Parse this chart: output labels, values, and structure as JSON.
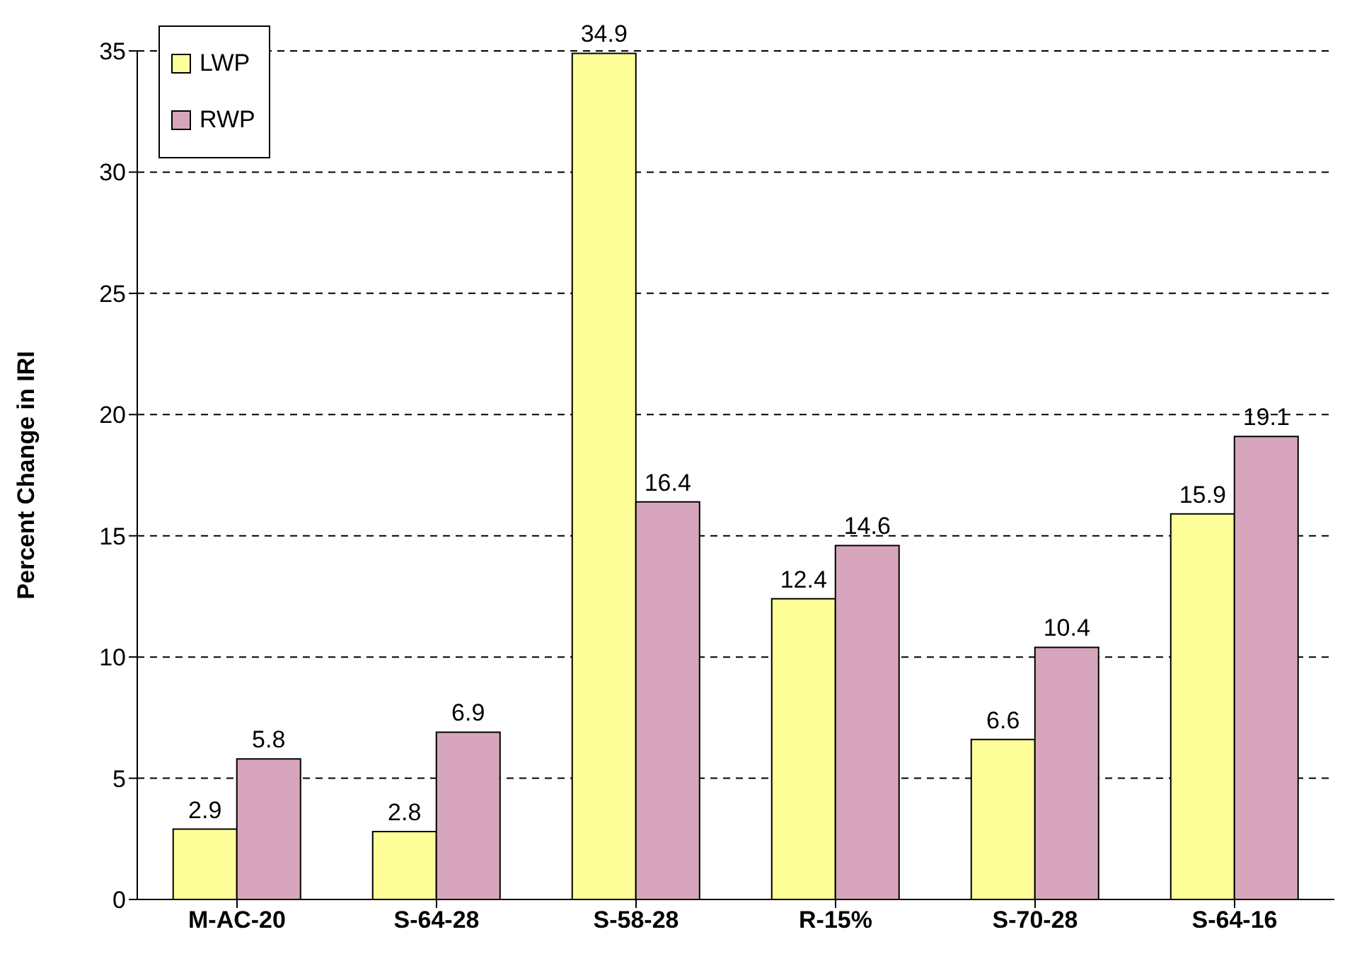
{
  "chart_data": {
    "type": "bar",
    "ylabel": "Percent Change in IRI",
    "categories": [
      "M-AC-20",
      "S-64-28",
      "S-58-28",
      "R-15%",
      "S-70-28",
      "S-64-16"
    ],
    "series": [
      {
        "name": "LWP",
        "color": "#ffff99",
        "values": [
          2.9,
          2.8,
          34.9,
          12.4,
          6.6,
          15.9
        ]
      },
      {
        "name": "RWP",
        "color": "#d8a6bc",
        "values": [
          5.8,
          6.9,
          16.4,
          14.6,
          10.4,
          19.1
        ]
      }
    ],
    "ylim": [
      0,
      35
    ],
    "yticks": [
      0,
      5,
      10,
      15,
      20,
      25,
      30,
      35
    ],
    "grid": "y",
    "legend": "top left",
    "data_labels": true
  }
}
